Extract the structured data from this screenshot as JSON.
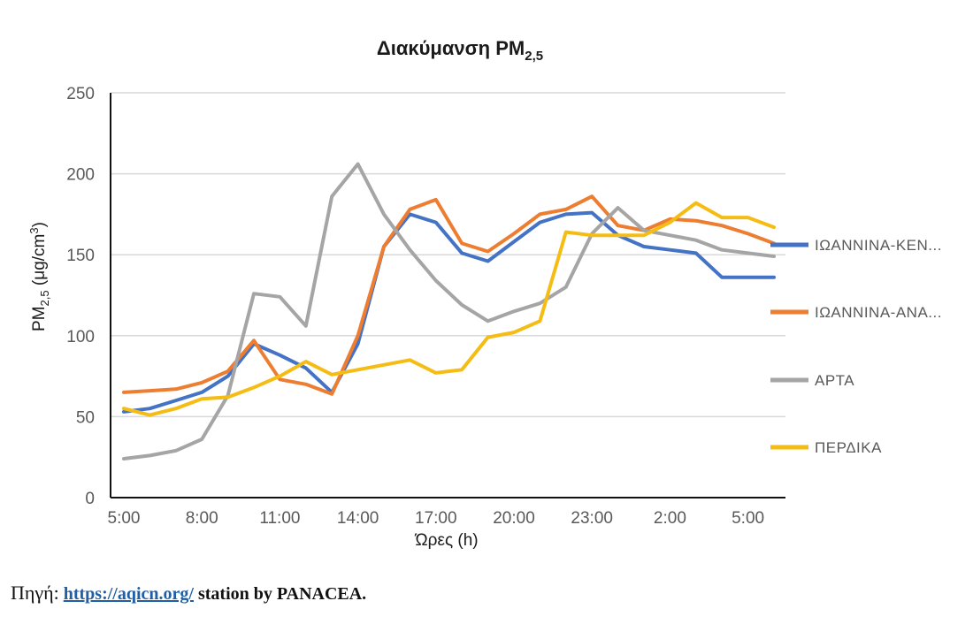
{
  "chart_data": {
    "type": "line",
    "title": "Διακύμανση PM",
    "title_subscript": "2,5",
    "ylabel_main": "PM",
    "ylabel_sub": "2,5",
    "ylabel_unit": " (μg/cm",
    "ylabel_sup": "3",
    "ylabel_close": ")",
    "xlabel": "Ώρες (h)",
    "ylim": [
      0,
      250
    ],
    "yticks": [
      0,
      50,
      100,
      150,
      200,
      250
    ],
    "x_tick_labels": [
      "5:00",
      "8:00",
      "11:00",
      "14:00",
      "17:00",
      "20:00",
      "23:00",
      "2:00",
      "5:00"
    ],
    "x_tick_positions": [
      0,
      3,
      6,
      9,
      12,
      15,
      18,
      21,
      24
    ],
    "x_count": 26,
    "grid": "horizontal",
    "legend_position": "right",
    "series": [
      {
        "name": "ΙΩΑΝΝΙΝΑ-ΚΕΝ...",
        "color": "#4472c4",
        "values": [
          53,
          55,
          60,
          65,
          75,
          95,
          88,
          80,
          65,
          95,
          155,
          175,
          170,
          151,
          146,
          158,
          170,
          175,
          176,
          162,
          155,
          153,
          151,
          136,
          136,
          136
        ]
      },
      {
        "name": "ΙΩΑΝΝΙΝΑ-ΑΝΑ...",
        "color": "#ed7d31",
        "values": [
          65,
          66,
          67,
          71,
          78,
          97,
          73,
          70,
          64,
          100,
          155,
          178,
          184,
          157,
          152,
          163,
          175,
          178,
          186,
          168,
          165,
          172,
          171,
          168,
          163,
          157
        ]
      },
      {
        "name": "ΑΡΤΑ",
        "color": "#a5a5a5",
        "values": [
          24,
          26,
          29,
          36,
          63,
          126,
          124,
          106,
          186,
          206,
          175,
          153,
          134,
          119,
          109,
          115,
          120,
          130,
          163,
          179,
          165,
          162,
          159,
          153,
          151,
          149
        ]
      },
      {
        "name": "ΠΕΡΔΙΚΑ",
        "color": "#f5bd14",
        "values": [
          55,
          51,
          55,
          61,
          62,
          68,
          75,
          84,
          76,
          79,
          82,
          85,
          77,
          79,
          99,
          102,
          109,
          164,
          162,
          162,
          162,
          170,
          182,
          173,
          173,
          167
        ]
      }
    ]
  },
  "source": {
    "label": "Πηγή:",
    "link_text": "https://aqicn.org/",
    "suffix": " station by PANACEA."
  }
}
